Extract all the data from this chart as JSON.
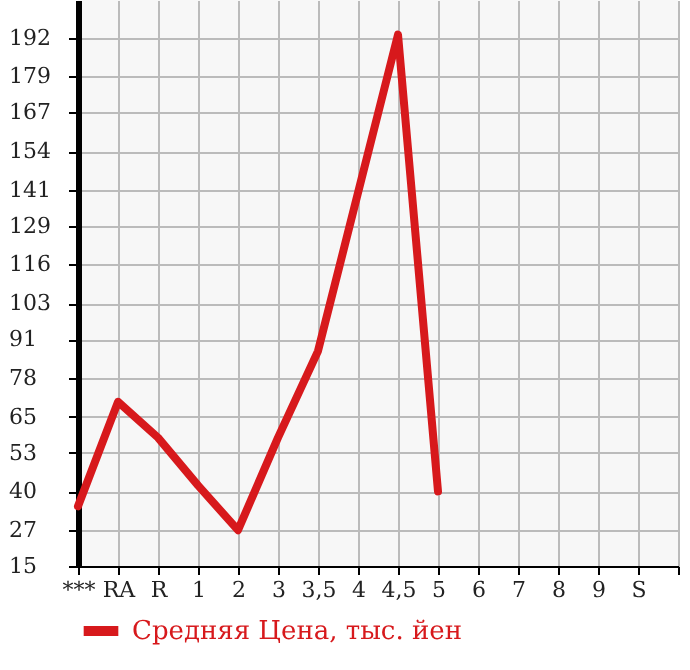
{
  "chart_data": {
    "type": "line",
    "categories": [
      "***",
      "RA",
      "R",
      "1",
      "2",
      "3",
      "3,5",
      "4",
      "4,5",
      "5",
      "6",
      "7",
      "8",
      "9",
      "S",
      null
    ],
    "series": [
      {
        "name": "Средняя Цена, тыс. йен",
        "color": "#d7191c",
        "values": [
          35,
          70,
          58,
          42,
          27,
          58,
          87,
          140,
          193,
          40,
          null,
          null,
          null,
          null,
          null,
          null
        ]
      }
    ],
    "ylim": [
      15,
      204.6
    ],
    "yticks": [
      15,
      27,
      40,
      53,
      65,
      78,
      91,
      103,
      116,
      129,
      141,
      154,
      167,
      179,
      192
    ],
    "grid": true,
    "legend": "bottom left",
    "marker": "none",
    "line_style": "solid"
  }
}
